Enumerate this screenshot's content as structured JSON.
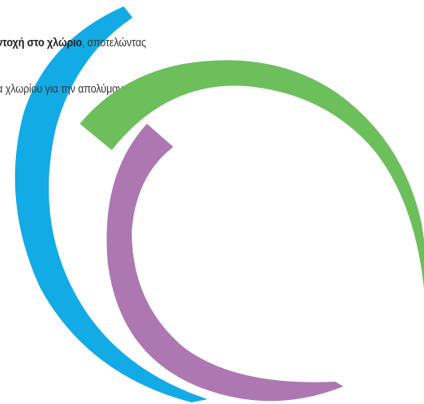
{
  "text": {
    "line1_bold": "ντοχή στο χλώριο",
    "line1_rest": ",  αποτελώντας",
    "line2": "α χλωρίου για την απολύμανση και την"
  },
  "colors": {
    "blue_arc": "#12abe6",
    "green_arc": "#6dbf5c",
    "purple_arc": "#ad78b2",
    "background": "#ffffff"
  }
}
